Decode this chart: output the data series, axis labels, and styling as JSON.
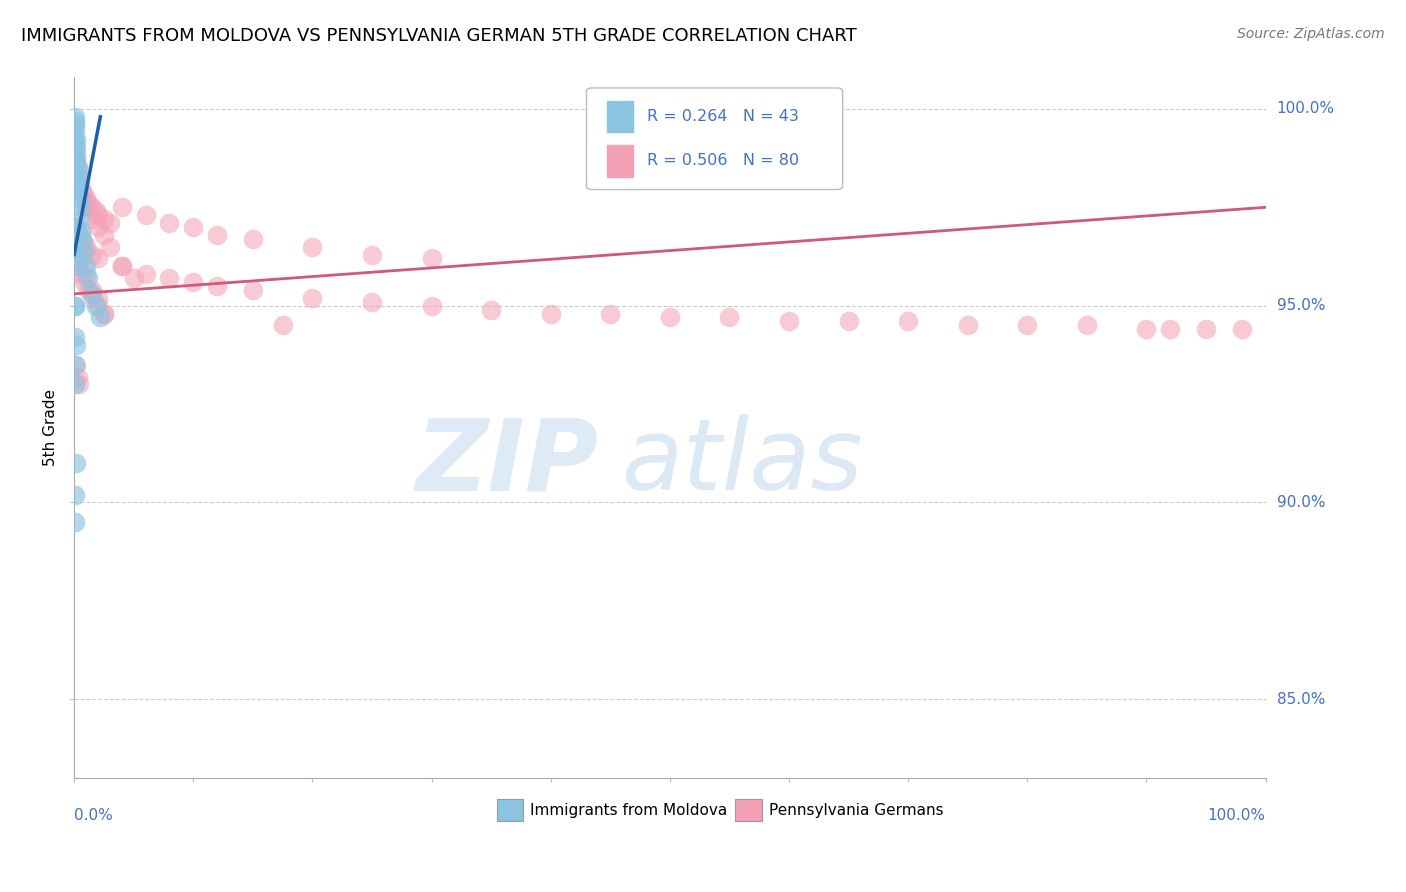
{
  "title": "IMMIGRANTS FROM MOLDOVA VS PENNSYLVANIA GERMAN 5TH GRADE CORRELATION CHART",
  "source": "Source: ZipAtlas.com",
  "ylabel": "5th Grade",
  "legend1_label": "Immigrants from Moldova",
  "legend2_label": "Pennsylvania Germans",
  "r1": 0.264,
  "n1": 43,
  "r2": 0.506,
  "n2": 80,
  "color_blue": "#8ac4e2",
  "color_pink": "#f4a0b5",
  "color_blue_line": "#1a5fa8",
  "color_pink_line": "#d05878",
  "color_axis_text": "#4472c4",
  "watermark_zip": "ZIP",
  "watermark_atlas": "atlas",
  "xlim": [
    0.0,
    1.0
  ],
  "ylim": [
    0.83,
    1.008
  ],
  "ytick_values": [
    1.0,
    0.95,
    0.9,
    0.85
  ],
  "ytick_labels": [
    "100.0%",
    "95.0%",
    "90.0%",
    "85.0%"
  ],
  "blue_x": [
    0.0005,
    0.0008,
    0.001,
    0.001,
    0.001,
    0.001,
    0.001,
    0.001,
    0.0015,
    0.002,
    0.002,
    0.002,
    0.002,
    0.002,
    0.003,
    0.003,
    0.003,
    0.003,
    0.004,
    0.004,
    0.005,
    0.005,
    0.006,
    0.007,
    0.008,
    0.01,
    0.012,
    0.015,
    0.018,
    0.022,
    0.001,
    0.001,
    0.002,
    0.003,
    0.001,
    0.0005,
    0.001,
    0.002,
    0.001,
    0.001,
    0.0015,
    0.001,
    0.001
  ],
  "blue_y": [
    0.997,
    0.996,
    0.998,
    0.995,
    0.993,
    0.991,
    0.989,
    0.987,
    0.992,
    0.99,
    0.988,
    0.986,
    0.984,
    0.982,
    0.985,
    0.983,
    0.981,
    0.979,
    0.98,
    0.977,
    0.975,
    0.972,
    0.969,
    0.967,
    0.964,
    0.96,
    0.957,
    0.953,
    0.95,
    0.947,
    0.97,
    0.965,
    0.963,
    0.96,
    0.95,
    0.95,
    0.942,
    0.94,
    0.935,
    0.93,
    0.91,
    0.902,
    0.895
  ],
  "pink_x": [
    0.001,
    0.002,
    0.003,
    0.004,
    0.005,
    0.006,
    0.007,
    0.008,
    0.01,
    0.012,
    0.015,
    0.018,
    0.02,
    0.025,
    0.03,
    0.002,
    0.003,
    0.004,
    0.006,
    0.008,
    0.01,
    0.015,
    0.02,
    0.003,
    0.005,
    0.008,
    0.012,
    0.016,
    0.02,
    0.025,
    0.04,
    0.06,
    0.08,
    0.1,
    0.12,
    0.15,
    0.2,
    0.25,
    0.3,
    0.04,
    0.06,
    0.08,
    0.1,
    0.12,
    0.15,
    0.2,
    0.25,
    0.3,
    0.35,
    0.4,
    0.45,
    0.5,
    0.55,
    0.6,
    0.65,
    0.7,
    0.75,
    0.8,
    0.85,
    0.9,
    0.92,
    0.95,
    0.98,
    0.01,
    0.015,
    0.02,
    0.025,
    0.03,
    0.04,
    0.05,
    0.004,
    0.006,
    0.01,
    0.015,
    0.02,
    0.025,
    0.175,
    0.002,
    0.003,
    0.004
  ],
  "pink_y": [
    0.99,
    0.987,
    0.985,
    0.983,
    0.982,
    0.98,
    0.979,
    0.978,
    0.977,
    0.976,
    0.975,
    0.974,
    0.973,
    0.972,
    0.971,
    0.97,
    0.969,
    0.968,
    0.967,
    0.966,
    0.965,
    0.963,
    0.962,
    0.96,
    0.958,
    0.956,
    0.954,
    0.952,
    0.95,
    0.948,
    0.975,
    0.973,
    0.971,
    0.97,
    0.968,
    0.967,
    0.965,
    0.963,
    0.962,
    0.96,
    0.958,
    0.957,
    0.956,
    0.955,
    0.954,
    0.952,
    0.951,
    0.95,
    0.949,
    0.948,
    0.948,
    0.947,
    0.947,
    0.946,
    0.946,
    0.946,
    0.945,
    0.945,
    0.945,
    0.944,
    0.944,
    0.944,
    0.944,
    0.975,
    0.972,
    0.97,
    0.968,
    0.965,
    0.96,
    0.957,
    0.965,
    0.962,
    0.958,
    0.954,
    0.952,
    0.948,
    0.945,
    0.935,
    0.932,
    0.93
  ],
  "blue_trendline_x": [
    0.0,
    0.022
  ],
  "blue_trendline_y_start": 0.963,
  "blue_trendline_y_end": 0.998,
  "pink_trendline_x": [
    0.0,
    1.0
  ],
  "pink_trendline_y_start": 0.953,
  "pink_trendline_y_end": 0.975
}
